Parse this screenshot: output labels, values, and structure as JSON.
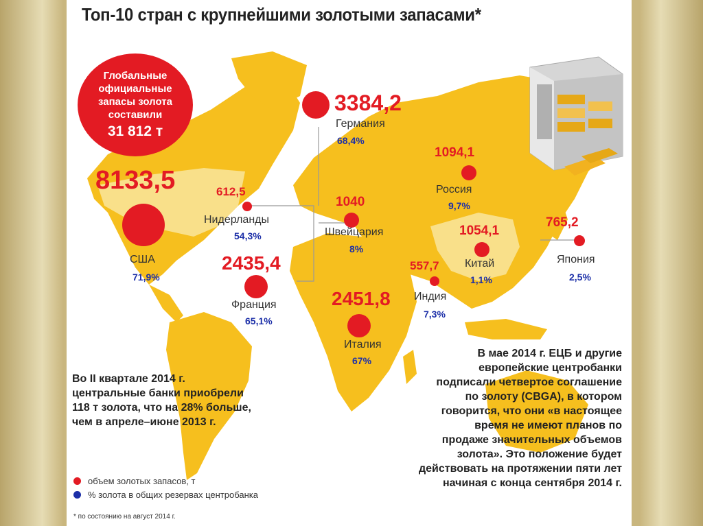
{
  "title": "Топ-10 стран с крупнейшими золотыми запасами*",
  "global": {
    "line1": "Глобальные",
    "line2": "официальные",
    "line3": "запасы золота",
    "line4": "составили",
    "total": "31 812 т"
  },
  "countries": [
    {
      "id": "usa",
      "value": "8133,5",
      "name": "США",
      "pct": "71,9%"
    },
    {
      "id": "germany",
      "value": "3384,2",
      "name": "Германия",
      "pct": "68,4%"
    },
    {
      "id": "netherlands",
      "value": "612,5",
      "name": "Нидерланды",
      "pct": "54,3%"
    },
    {
      "id": "switzerland",
      "value": "1040",
      "name": "Швейцария",
      "pct": "8%"
    },
    {
      "id": "russia",
      "value": "1094,1",
      "name": "Россия",
      "pct": "9,7%"
    },
    {
      "id": "china",
      "value": "1054,1",
      "name": "Китай",
      "pct": "1,1%"
    },
    {
      "id": "japan",
      "value": "765,2",
      "name": "Япония",
      "pct": "2,5%"
    },
    {
      "id": "france",
      "value": "2435,4",
      "name": "Франция",
      "pct": "65,1%"
    },
    {
      "id": "india",
      "value": "557,7",
      "name": "Индия",
      "pct": "7,3%"
    },
    {
      "id": "italy",
      "value": "2451,8",
      "name": "Италия",
      "pct": "67%"
    }
  ],
  "note_left": {
    "l1": "Во II квартале 2014 г.",
    "l2": "центральные банки приобрели",
    "l3": "118 т золота, что  на 28% больше,",
    "l4": "чем в апреле–июне 2013 г."
  },
  "note_right": {
    "l1": "В мае 2014 г. ЕЦБ и другие",
    "l2": "европейские центробанки",
    "l3": "подписали четвертое  соглашение",
    "l4": "по золоту (CBGA), в котором",
    "l5": "говорится, что они  «в настоящее",
    "l6": "время не имеют планов по",
    "l7": "продаже значительных объемов",
    "l8": "золота». Это положение будет",
    "l9": "действовать на протяжении пяти лет",
    "l10": "начиная с конца сентября 2014 г."
  },
  "legend": {
    "red": "объем золотых запасов, т",
    "blue": "% золота в общих резервах центробанка"
  },
  "footnote": "* по состоянию на август 2014 г.",
  "colors": {
    "accent": "#e31b23",
    "land": "#f6bf1e",
    "land_light": "#f9e08a",
    "pct": "#1c2fa8"
  }
}
